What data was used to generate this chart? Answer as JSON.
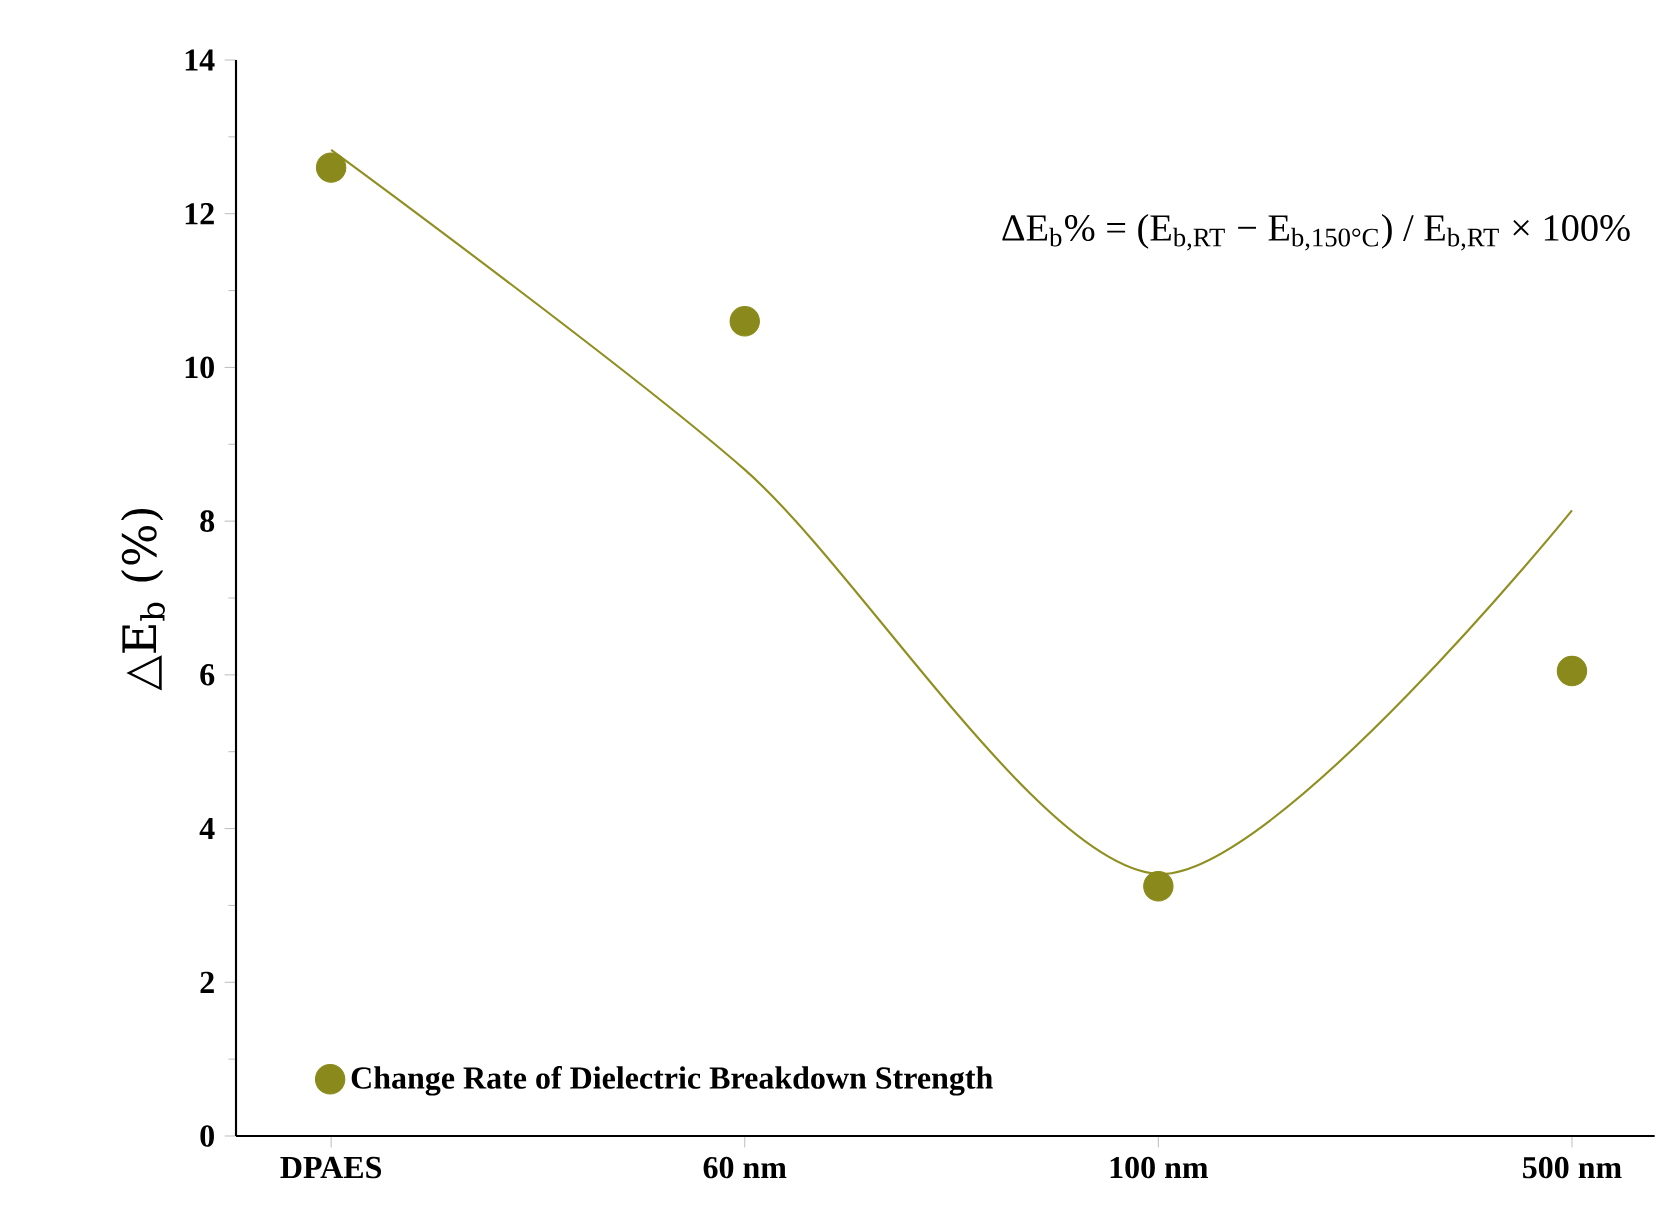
{
  "chart_data": {
    "type": "scatter",
    "ylabel": "△E$_{b}$ (%)",
    "categories": [
      "DPAES",
      "60 nm",
      "100 nm",
      "500 nm"
    ],
    "series": [
      {
        "name": "Change Rate of Dielectric Breakdown Strength",
        "color": "#8a8a1c",
        "values": [
          12.6,
          10.6,
          3.25,
          6.05
        ],
        "marker": "circle"
      },
      {
        "type": "line",
        "color": "#8f8f22",
        "values": [
          12.83,
          8.67,
          3.41,
          8.14
        ],
        "marker": "none"
      }
    ],
    "ylim": [
      0,
      14
    ],
    "yticks": [
      0,
      2,
      4,
      6,
      8,
      10,
      12,
      14
    ],
    "annotations": [
      "ΔE$_{b}$% = (E$_{b,RT}$ − E$_{b,150°C}$) / E$_{b,RT}$ × 100%"
    ],
    "legend": "bottom left",
    "grid": false
  }
}
